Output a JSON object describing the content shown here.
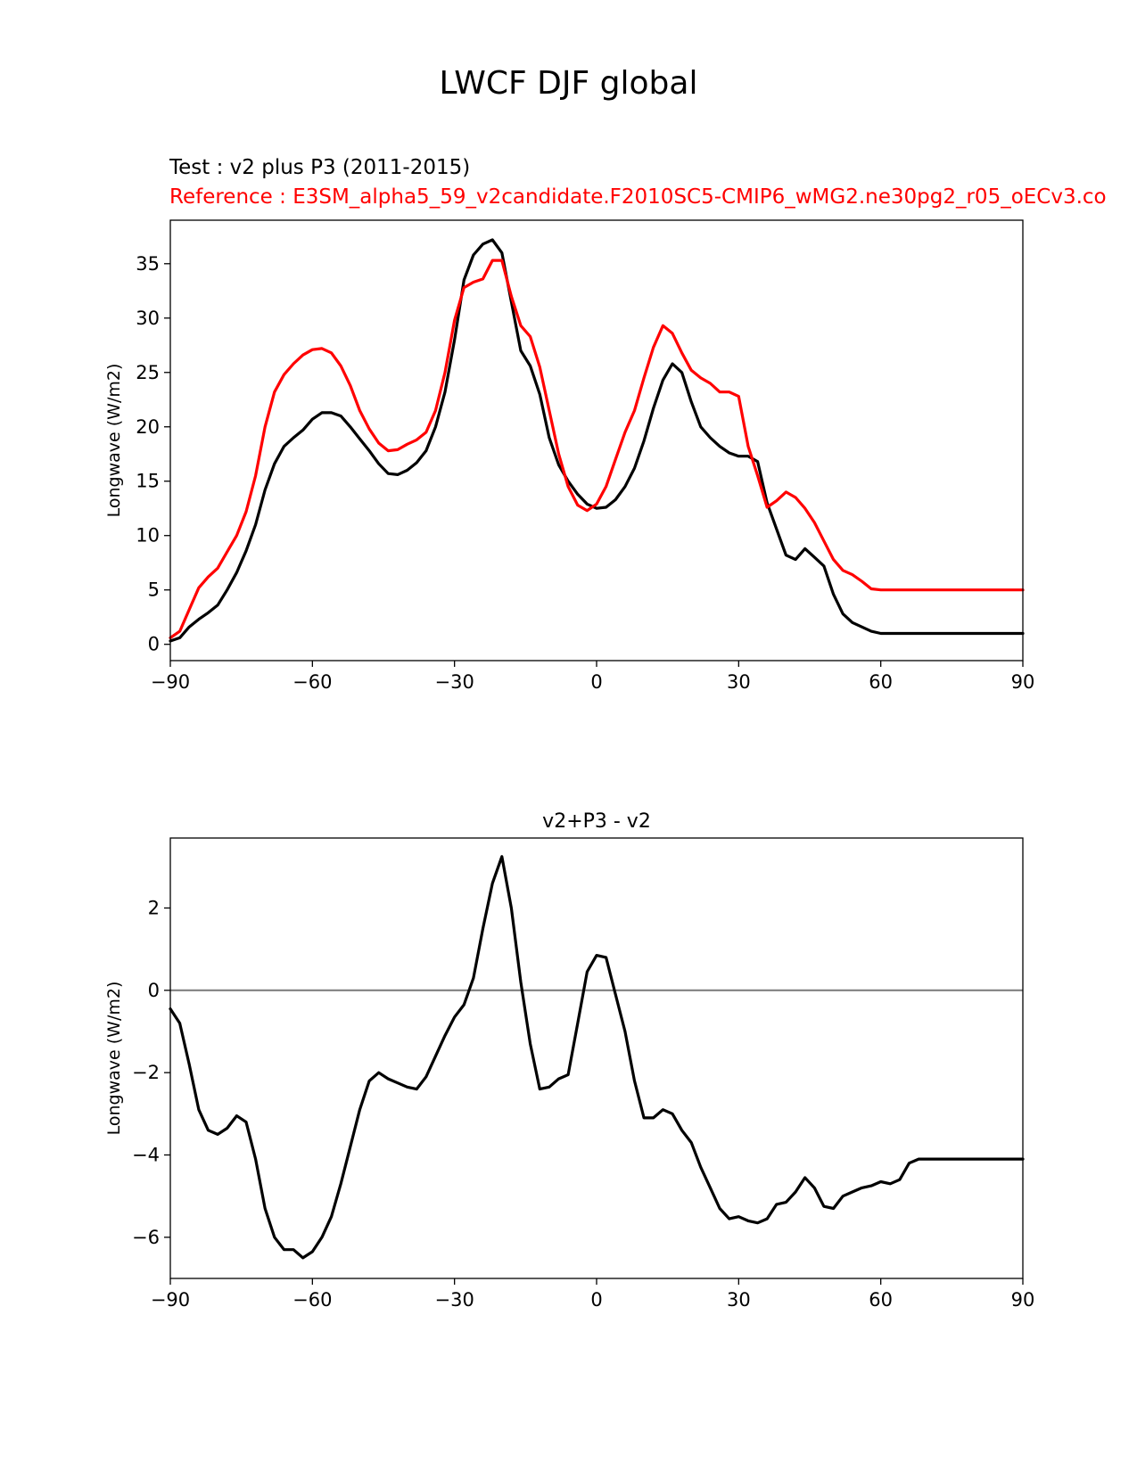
{
  "figure": {
    "title": "LWCF DJF global",
    "test_label": "Test : v2 plus P3 (2011-2015)",
    "reference_label": "Reference : E3SM_alpha5_59_v2candidate.F2010SC5-CMIP6_wMG2.ne30pg2_r05_oECv3.co",
    "colors": {
      "test": "#000000",
      "reference": "#ff0000",
      "zero_line": "#808080"
    }
  },
  "chart_data": [
    {
      "type": "line",
      "title": "",
      "xlabel": "",
      "ylabel": "Longwave (W/m2)",
      "xlim": [
        -90,
        90
      ],
      "ylim": [
        -1.5,
        39
      ],
      "xticks": [
        -90,
        -60,
        -30,
        0,
        30,
        60,
        90
      ],
      "xtick_labels": [
        "−90",
        "−60",
        "−30",
        "0",
        "30",
        "60",
        "90"
      ],
      "yticks": [
        0,
        5,
        10,
        15,
        20,
        25,
        30,
        35
      ],
      "ytick_labels": [
        "0",
        "5",
        "10",
        "15",
        "20",
        "25",
        "30",
        "35"
      ],
      "x": [
        -90,
        -88,
        -86,
        -84,
        -82,
        -80,
        -78,
        -76,
        -74,
        -72,
        -70,
        -68,
        -66,
        -64,
        -62,
        -60,
        -58,
        -56,
        -54,
        -52,
        -50,
        -48,
        -46,
        -44,
        -42,
        -40,
        -38,
        -36,
        -34,
        -32,
        -30,
        -28,
        -26,
        -24,
        -22,
        -20,
        -18,
        -16,
        -14,
        -12,
        -10,
        -8,
        -6,
        -4,
        -2,
        0,
        2,
        4,
        6,
        8,
        10,
        12,
        14,
        16,
        18,
        20,
        22,
        24,
        26,
        28,
        30,
        32,
        34,
        36,
        38,
        40,
        42,
        44,
        46,
        48,
        50,
        52,
        54,
        56,
        58,
        60,
        62,
        64,
        66,
        68,
        70,
        72,
        74,
        76,
        78,
        80,
        82,
        84,
        86,
        88,
        90
      ],
      "series": [
        {
          "name": "test",
          "color": "#000000",
          "values": [
            0.3,
            0.6,
            1.6,
            2.3,
            2.9,
            3.6,
            5.0,
            6.6,
            8.6,
            11.0,
            14.2,
            16.6,
            18.2,
            19.0,
            19.7,
            20.7,
            21.3,
            21.3,
            21.0,
            20.0,
            18.9,
            17.8,
            16.6,
            15.7,
            15.6,
            16.0,
            16.7,
            17.8,
            20.0,
            23.2,
            28.0,
            33.5,
            35.8,
            36.8,
            37.2,
            36.0,
            31.5,
            27.0,
            25.6,
            23.0,
            19.0,
            16.5,
            15.0,
            13.8,
            12.9,
            12.5,
            12.6,
            13.3,
            14.5,
            16.2,
            18.7,
            21.7,
            24.3,
            25.8,
            25.0,
            22.3,
            20.0,
            19.0,
            18.2,
            17.6,
            17.3,
            17.3,
            16.8,
            13.0,
            10.6,
            8.2,
            7.8,
            8.8,
            8.0,
            7.2,
            4.6,
            2.8,
            2.0,
            1.6,
            1.2,
            1.0,
            1.0,
            1.0,
            1.0,
            1.0,
            1.0,
            1.0,
            1.0,
            1.0,
            1.0,
            1.0,
            1.0,
            1.0,
            1.0,
            1.0,
            1.0
          ]
        },
        {
          "name": "reference",
          "color": "#ff0000",
          "values": [
            0.6,
            1.2,
            3.2,
            5.2,
            6.2,
            7.0,
            8.5,
            10.0,
            12.2,
            15.5,
            20.0,
            23.2,
            24.8,
            25.8,
            26.6,
            27.1,
            27.2,
            26.8,
            25.6,
            23.8,
            21.5,
            19.8,
            18.5,
            17.8,
            17.9,
            18.4,
            18.8,
            19.5,
            21.5,
            25.0,
            29.8,
            32.8,
            33.3,
            33.6,
            35.3,
            35.3,
            32.0,
            29.3,
            28.3,
            25.5,
            21.5,
            17.5,
            14.5,
            12.8,
            12.3,
            12.9,
            14.5,
            17.0,
            19.5,
            21.5,
            24.5,
            27.3,
            29.3,
            28.6,
            26.8,
            25.2,
            24.5,
            24.0,
            23.2,
            23.2,
            22.8,
            18.2,
            15.5,
            12.6,
            13.2,
            14.0,
            13.5,
            12.5,
            11.2,
            9.5,
            7.8,
            6.8,
            6.4,
            5.8,
            5.1,
            5.0,
            5.0,
            5.0,
            5.0,
            5.0,
            5.0,
            5.0,
            5.0,
            5.0,
            5.0,
            5.0,
            5.0,
            5.0,
            5.0,
            5.0,
            5.0
          ]
        }
      ]
    },
    {
      "type": "line",
      "title": "v2+P3 - v2",
      "xlabel": "",
      "ylabel": "Longwave (W/m2)",
      "xlim": [
        -90,
        90
      ],
      "ylim": [
        -7.0,
        3.7
      ],
      "xticks": [
        -90,
        -60,
        -30,
        0,
        30,
        60,
        90
      ],
      "xtick_labels": [
        "−90",
        "−60",
        "−30",
        "0",
        "30",
        "60",
        "90"
      ],
      "yticks": [
        -6,
        -4,
        -2,
        0,
        2
      ],
      "ytick_labels": [
        "−6",
        "−4",
        "−2",
        "0",
        "2"
      ],
      "zero_line": 0,
      "x": [
        -90,
        -88,
        -86,
        -84,
        -82,
        -80,
        -78,
        -76,
        -74,
        -72,
        -70,
        -68,
        -66,
        -64,
        -62,
        -60,
        -58,
        -56,
        -54,
        -52,
        -50,
        -48,
        -46,
        -44,
        -42,
        -40,
        -38,
        -36,
        -34,
        -32,
        -30,
        -28,
        -26,
        -24,
        -22,
        -20,
        -18,
        -16,
        -14,
        -12,
        -10,
        -8,
        -6,
        -4,
        -2,
        0,
        2,
        4,
        6,
        8,
        10,
        12,
        14,
        16,
        18,
        20,
        22,
        24,
        26,
        28,
        30,
        32,
        34,
        36,
        38,
        40,
        42,
        44,
        46,
        48,
        50,
        52,
        54,
        56,
        58,
        60,
        62,
        64,
        66,
        68,
        70,
        72,
        74,
        76,
        78,
        80,
        82,
        84,
        86,
        88,
        90
      ],
      "series": [
        {
          "name": "difference",
          "color": "#000000",
          "values": [
            -0.45,
            -0.8,
            -1.8,
            -2.9,
            -3.4,
            -3.5,
            -3.35,
            -3.05,
            -3.2,
            -4.1,
            -5.3,
            -6.0,
            -6.3,
            -6.3,
            -6.5,
            -6.35,
            -6.0,
            -5.5,
            -4.7,
            -3.8,
            -2.9,
            -2.2,
            -2.0,
            -2.15,
            -2.25,
            -2.35,
            -2.4,
            -2.1,
            -1.6,
            -1.1,
            -0.65,
            -0.35,
            0.3,
            1.5,
            2.6,
            3.25,
            2.0,
            0.2,
            -1.3,
            -2.4,
            -2.35,
            -2.15,
            -2.05,
            -0.8,
            0.45,
            0.85,
            0.8,
            -0.1,
            -1.0,
            -2.2,
            -3.1,
            -3.1,
            -2.9,
            -3.0,
            -3.4,
            -3.7,
            -4.3,
            -4.8,
            -5.3,
            -5.55,
            -5.5,
            -5.6,
            -5.65,
            -5.55,
            -5.2,
            -5.15,
            -4.9,
            -4.55,
            -4.8,
            -5.25,
            -5.3,
            -5.0,
            -4.9,
            -4.8,
            -4.75,
            -4.65,
            -4.7,
            -4.6,
            -4.2,
            -4.1,
            -4.1,
            -4.1,
            -4.1,
            -4.1,
            -4.1,
            -4.1,
            -4.1,
            -4.1,
            -4.1,
            -4.1,
            -4.1
          ]
        }
      ]
    }
  ]
}
